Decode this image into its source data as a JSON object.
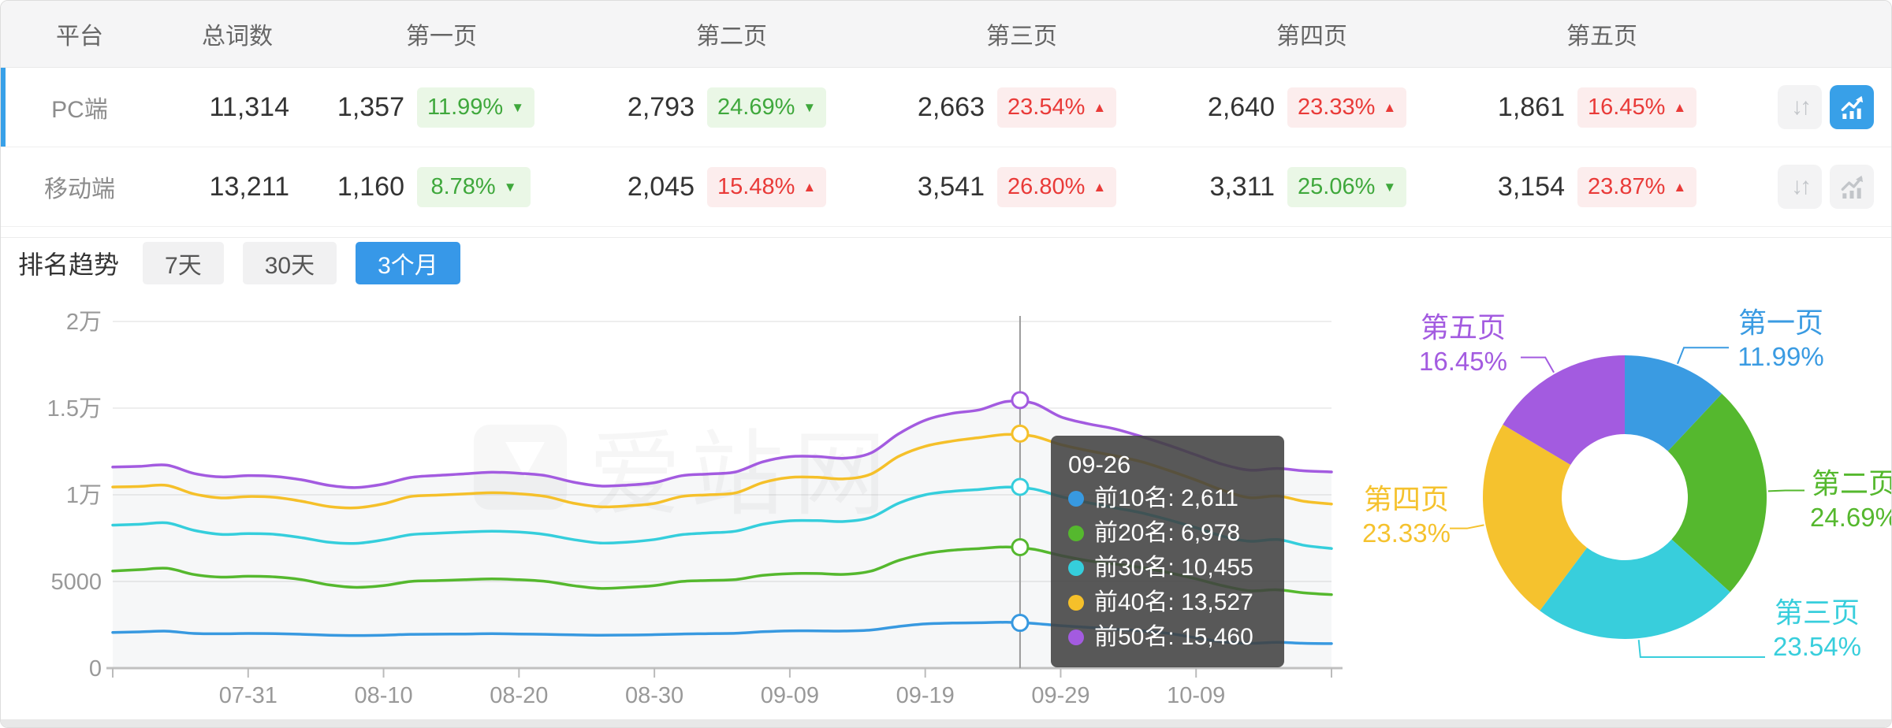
{
  "table": {
    "columns": [
      "平台",
      "总词数",
      "第一页",
      "第二页",
      "第三页",
      "第四页",
      "第五页"
    ],
    "rows": [
      {
        "platform": "PC端",
        "total": "11,314",
        "active": true,
        "chart_button_active": true,
        "pages": [
          {
            "count": "1,357",
            "pct": "11.99%",
            "dir": "down",
            "arrow": "▼"
          },
          {
            "count": "2,793",
            "pct": "24.69%",
            "dir": "down",
            "arrow": "▼"
          },
          {
            "count": "2,663",
            "pct": "23.54%",
            "dir": "up",
            "arrow": "▲"
          },
          {
            "count": "2,640",
            "pct": "23.33%",
            "dir": "up",
            "arrow": "▲"
          },
          {
            "count": "1,861",
            "pct": "16.45%",
            "dir": "up",
            "arrow": "▲"
          }
        ]
      },
      {
        "platform": "移动端",
        "total": "13,211",
        "active": false,
        "chart_button_active": false,
        "pages": [
          {
            "count": "1,160",
            "pct": "8.78%",
            "dir": "down",
            "arrow": "▼"
          },
          {
            "count": "2,045",
            "pct": "15.48%",
            "dir": "up",
            "arrow": "▲"
          },
          {
            "count": "3,541",
            "pct": "26.80%",
            "dir": "up",
            "arrow": "▲"
          },
          {
            "count": "3,311",
            "pct": "25.06%",
            "dir": "down",
            "arrow": "▼"
          },
          {
            "count": "3,154",
            "pct": "23.87%",
            "dir": "up",
            "arrow": "▲"
          }
        ]
      }
    ]
  },
  "trend": {
    "title": "排名趋势",
    "tabs": [
      {
        "label": "7天",
        "active": false
      },
      {
        "label": "30天",
        "active": false
      },
      {
        "label": "3个月",
        "active": true
      }
    ]
  },
  "tooltip": {
    "date": "09-26",
    "items": [
      {
        "text": "前10名: 2,611"
      },
      {
        "text": "前20名: 6,978"
      },
      {
        "text": "前30名: 10,455"
      },
      {
        "text": "前40名: 13,527"
      },
      {
        "text": "前50名: 15,460"
      }
    ]
  },
  "watermark": "爱站网",
  "colors": {
    "accent_blue": "#38A0E8",
    "badge_green": "#3FA83C",
    "badge_red": "#E93A38"
  },
  "chart_data": [
    {
      "type": "line",
      "title": "排名趋势 3个月",
      "x_ticks": [
        {
          "label": "07-31",
          "day": 10
        },
        {
          "label": "08-10",
          "day": 20
        },
        {
          "label": "08-20",
          "day": 30
        },
        {
          "label": "08-30",
          "day": 40
        },
        {
          "label": "09-09",
          "day": 50
        },
        {
          "label": "09-19",
          "day": 60
        },
        {
          "label": "09-29",
          "day": 70
        },
        {
          "label": "10-09",
          "day": 80
        }
      ],
      "x_range_days": 90,
      "y_tick_values": [
        0,
        5000,
        10000,
        15000,
        20000
      ],
      "y_tick_labels": [
        "0",
        "5000",
        "1万",
        "1.5万",
        "2万"
      ],
      "ylim": [
        0,
        20000
      ],
      "sample_day_step": 2,
      "series": [
        {
          "name": "前10名",
          "color": "#3899E0",
          "values": [
            2060,
            2090,
            2130,
            2000,
            1980,
            2000,
            1990,
            1950,
            1900,
            1880,
            1900,
            1950,
            1960,
            1970,
            1985,
            1970,
            1950,
            1920,
            1900,
            1910,
            1930,
            1970,
            1990,
            2010,
            2100,
            2150,
            2150,
            2140,
            2200,
            2400,
            2550,
            2600,
            2620,
            2645,
            2580,
            2450,
            2350,
            2250,
            2150,
            2000,
            1750,
            1520,
            1430,
            1490,
            1430,
            1415
          ]
        },
        {
          "name": "前20名",
          "color": "#55B82E",
          "values": [
            5600,
            5680,
            5760,
            5400,
            5250,
            5300,
            5260,
            5100,
            4800,
            4660,
            4760,
            5000,
            5050,
            5100,
            5150,
            5100,
            5000,
            4760,
            4600,
            4660,
            4760,
            5000,
            5060,
            5110,
            5350,
            5450,
            5460,
            5410,
            5600,
            6200,
            6600,
            6800,
            6900,
            6990,
            6860,
            6500,
            6200,
            6000,
            5800,
            5500,
            5150,
            4750,
            4460,
            4520,
            4340,
            4240
          ]
        },
        {
          "name": "前30名",
          "color": "#35CEDC",
          "values": [
            8250,
            8300,
            8380,
            7950,
            7720,
            7760,
            7720,
            7520,
            7260,
            7200,
            7400,
            7700,
            7780,
            7850,
            7900,
            7850,
            7700,
            7420,
            7220,
            7270,
            7420,
            7700,
            7800,
            7900,
            8300,
            8500,
            8510,
            8460,
            8700,
            9500,
            10000,
            10200,
            10310,
            10440,
            10330,
            9900,
            9550,
            9250,
            8950,
            8550,
            8100,
            7600,
            7320,
            7420,
            7080,
            6900
          ]
        },
        {
          "name": "前40名",
          "color": "#F5C02A",
          "values": [
            10450,
            10480,
            10540,
            10050,
            9820,
            9900,
            9850,
            9620,
            9320,
            9250,
            9480,
            9900,
            9980,
            10050,
            10120,
            10060,
            9900,
            9520,
            9310,
            9360,
            9500,
            9900,
            10000,
            10110,
            10700,
            11000,
            11010,
            10920,
            11200,
            12200,
            12800,
            13100,
            13300,
            13480,
            13380,
            12900,
            12550,
            12250,
            11900,
            11400,
            10850,
            10250,
            9830,
            9930,
            9620,
            9470
          ]
        },
        {
          "name": "前50名",
          "color": "#A35BE0",
          "values": [
            11600,
            11640,
            11710,
            11230,
            11030,
            11110,
            11060,
            10860,
            10540,
            10420,
            10620,
            11000,
            11120,
            11210,
            11300,
            11240,
            11100,
            10730,
            10510,
            10560,
            10700,
            11100,
            11200,
            11320,
            11900,
            12200,
            12210,
            12110,
            12420,
            13500,
            14300,
            14700,
            14900,
            15380,
            15280,
            14500,
            14100,
            13800,
            13350,
            12850,
            12300,
            11750,
            11420,
            11520,
            11380,
            11320
          ]
        }
      ],
      "highlight": {
        "date": "09-26",
        "day": 67,
        "values": [
          2611,
          6978,
          10455,
          13527,
          15460
        ]
      }
    },
    {
      "type": "pie",
      "subtype": "donut",
      "categories": [
        "第一页",
        "第二页",
        "第三页",
        "第四页",
        "第五页"
      ],
      "values": [
        11.99,
        24.69,
        23.54,
        23.33,
        16.45
      ],
      "unit": "%",
      "colors": [
        "#3A9BE2",
        "#55B82E",
        "#38CEDC",
        "#F5C22E",
        "#A35BE0"
      ]
    }
  ]
}
